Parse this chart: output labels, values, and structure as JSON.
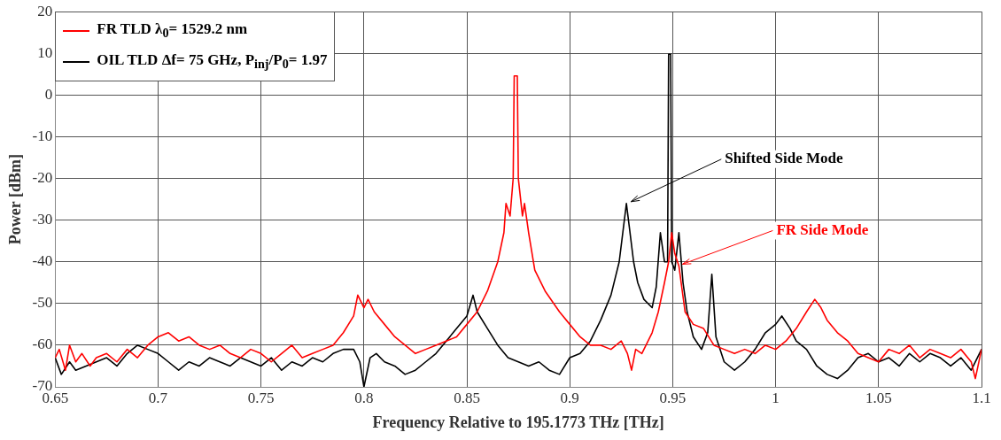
{
  "chart_data": {
    "type": "line",
    "xlabel": "Frequency Relative to 195.1773 THz [THz]",
    "ylabel": "Power [dBm]",
    "xlim": [
      0.65,
      1.1
    ],
    "xticks": [
      0.65,
      0.7,
      0.75,
      0.8,
      0.85,
      0.9,
      0.95,
      1,
      1.05,
      1.1
    ],
    "ylim": [
      -70,
      20
    ],
    "yticks": [
      -70,
      -60,
      -50,
      -40,
      -30,
      -20,
      -10,
      0,
      10,
      20
    ],
    "grid": true,
    "legend": "top left",
    "marker": "none",
    "line_style": "solid",
    "series": [
      {
        "name": "FR TLD λ$_{0}$= 1529.2 nm",
        "color": "#ff0000",
        "x": [
          0.65,
          0.652,
          0.655,
          0.657,
          0.66,
          0.663,
          0.667,
          0.67,
          0.675,
          0.68,
          0.685,
          0.69,
          0.695,
          0.7,
          0.705,
          0.71,
          0.715,
          0.72,
          0.725,
          0.73,
          0.735,
          0.74,
          0.745,
          0.75,
          0.755,
          0.76,
          0.765,
          0.77,
          0.775,
          0.78,
          0.785,
          0.79,
          0.795,
          0.797,
          0.8,
          0.802,
          0.805,
          0.81,
          0.815,
          0.82,
          0.825,
          0.83,
          0.835,
          0.84,
          0.845,
          0.85,
          0.855,
          0.86,
          0.865,
          0.868,
          0.869,
          0.871,
          0.8725,
          0.873,
          0.8745,
          0.875,
          0.877,
          0.878,
          0.88,
          0.883,
          0.888,
          0.895,
          0.9,
          0.905,
          0.91,
          0.915,
          0.92,
          0.925,
          0.928,
          0.93,
          0.932,
          0.935,
          0.94,
          0.943,
          0.946,
          0.948,
          0.9495,
          0.951,
          0.953,
          0.956,
          0.96,
          0.965,
          0.97,
          0.975,
          0.98,
          0.985,
          0.99,
          0.995,
          1.0,
          1.005,
          1.01,
          1.015,
          1.019,
          1.022,
          1.025,
          1.03,
          1.035,
          1.04,
          1.045,
          1.05,
          1.055,
          1.06,
          1.065,
          1.07,
          1.075,
          1.08,
          1.085,
          1.09,
          1.095,
          1.097,
          1.1
        ],
        "values": [
          -63,
          -61,
          -66,
          -60,
          -64,
          -62,
          -65,
          -63,
          -62,
          -64,
          -61,
          -63,
          -60,
          -58,
          -57,
          -59,
          -58,
          -60,
          -61,
          -60,
          -62,
          -63,
          -61,
          -62,
          -64,
          -62,
          -60,
          -63,
          -62,
          -61,
          -60,
          -57,
          -53,
          -48,
          -51,
          -49,
          -52,
          -55,
          -58,
          -60,
          -62,
          -61,
          -60,
          -59,
          -58,
          -55,
          -52,
          -47,
          -40,
          -33,
          -26,
          -29,
          -20,
          4.6,
          4.6,
          -20,
          -29,
          -26,
          -33,
          -42,
          -47,
          -52,
          -55,
          -58,
          -60,
          -60,
          -61,
          -59,
          -62,
          -66,
          -61,
          -62,
          -57,
          -52,
          -45,
          -40,
          -33,
          -38,
          -41,
          -52,
          -55,
          -56,
          -60,
          -61,
          -62,
          -61,
          -62,
          -60,
          -61,
          -59,
          -56,
          -52,
          -49,
          -51,
          -54,
          -57,
          -59,
          -62,
          -63,
          -64,
          -61,
          -62,
          -60,
          -63,
          -61,
          -62,
          -63,
          -61,
          -64,
          -68,
          -61
        ]
      },
      {
        "name": "OIL TLD Δf= 75 GHz, P$_{inj}$/P$_{0}$= 1.97",
        "color": "#000000",
        "x": [
          0.65,
          0.653,
          0.657,
          0.66,
          0.665,
          0.67,
          0.675,
          0.68,
          0.685,
          0.69,
          0.695,
          0.7,
          0.705,
          0.71,
          0.715,
          0.72,
          0.725,
          0.73,
          0.735,
          0.74,
          0.745,
          0.75,
          0.755,
          0.76,
          0.765,
          0.77,
          0.775,
          0.78,
          0.785,
          0.79,
          0.795,
          0.798,
          0.8,
          0.803,
          0.806,
          0.81,
          0.815,
          0.82,
          0.825,
          0.83,
          0.835,
          0.84,
          0.845,
          0.85,
          0.853,
          0.855,
          0.86,
          0.865,
          0.87,
          0.875,
          0.88,
          0.885,
          0.89,
          0.895,
          0.9,
          0.905,
          0.91,
          0.915,
          0.92,
          0.924,
          0.9275,
          0.931,
          0.933,
          0.936,
          0.94,
          0.942,
          0.944,
          0.946,
          0.9475,
          0.948,
          0.949,
          0.9495,
          0.951,
          0.953,
          0.955,
          0.957,
          0.96,
          0.964,
          0.967,
          0.969,
          0.971,
          0.975,
          0.98,
          0.985,
          0.99,
          0.995,
          1.0,
          1.003,
          1.007,
          1.01,
          1.015,
          1.02,
          1.025,
          1.03,
          1.035,
          1.04,
          1.045,
          1.05,
          1.055,
          1.06,
          1.065,
          1.07,
          1.075,
          1.08,
          1.085,
          1.09,
          1.095,
          1.1
        ],
        "values": [
          -63,
          -67,
          -64,
          -66,
          -65,
          -64,
          -63,
          -65,
          -62,
          -60,
          -61,
          -62,
          -64,
          -66,
          -64,
          -65,
          -63,
          -64,
          -65,
          -63,
          -64,
          -65,
          -63,
          -66,
          -64,
          -65,
          -63,
          -64,
          -62,
          -61,
          -61,
          -64,
          -70,
          -63,
          -62,
          -64,
          -65,
          -67,
          -66,
          -64,
          -62,
          -59,
          -56,
          -53,
          -48,
          -52,
          -56,
          -60,
          -63,
          -64,
          -65,
          -64,
          -66,
          -67,
          -63,
          -62,
          -59,
          -54,
          -48,
          -40,
          -26,
          -40,
          -45,
          -49,
          -51,
          -46,
          -33,
          -40,
          -40,
          9.8,
          9.8,
          -40,
          -42,
          -33,
          -45,
          -52,
          -58,
          -61,
          -57,
          -43,
          -58,
          -64,
          -66,
          -64,
          -61,
          -57,
          -55,
          -53,
          -56,
          -59,
          -61,
          -65,
          -67,
          -68,
          -66,
          -63,
          -62,
          -64,
          -63,
          -65,
          -62,
          -64,
          -62,
          -63,
          -65,
          -63,
          -66,
          -61
        ]
      }
    ],
    "annotations": [
      {
        "text": "Shifted Side Mode",
        "x": 0.928,
        "y": -26
      },
      {
        "text": "FR Side Mode",
        "x": 0.953,
        "y": -41
      }
    ]
  }
}
